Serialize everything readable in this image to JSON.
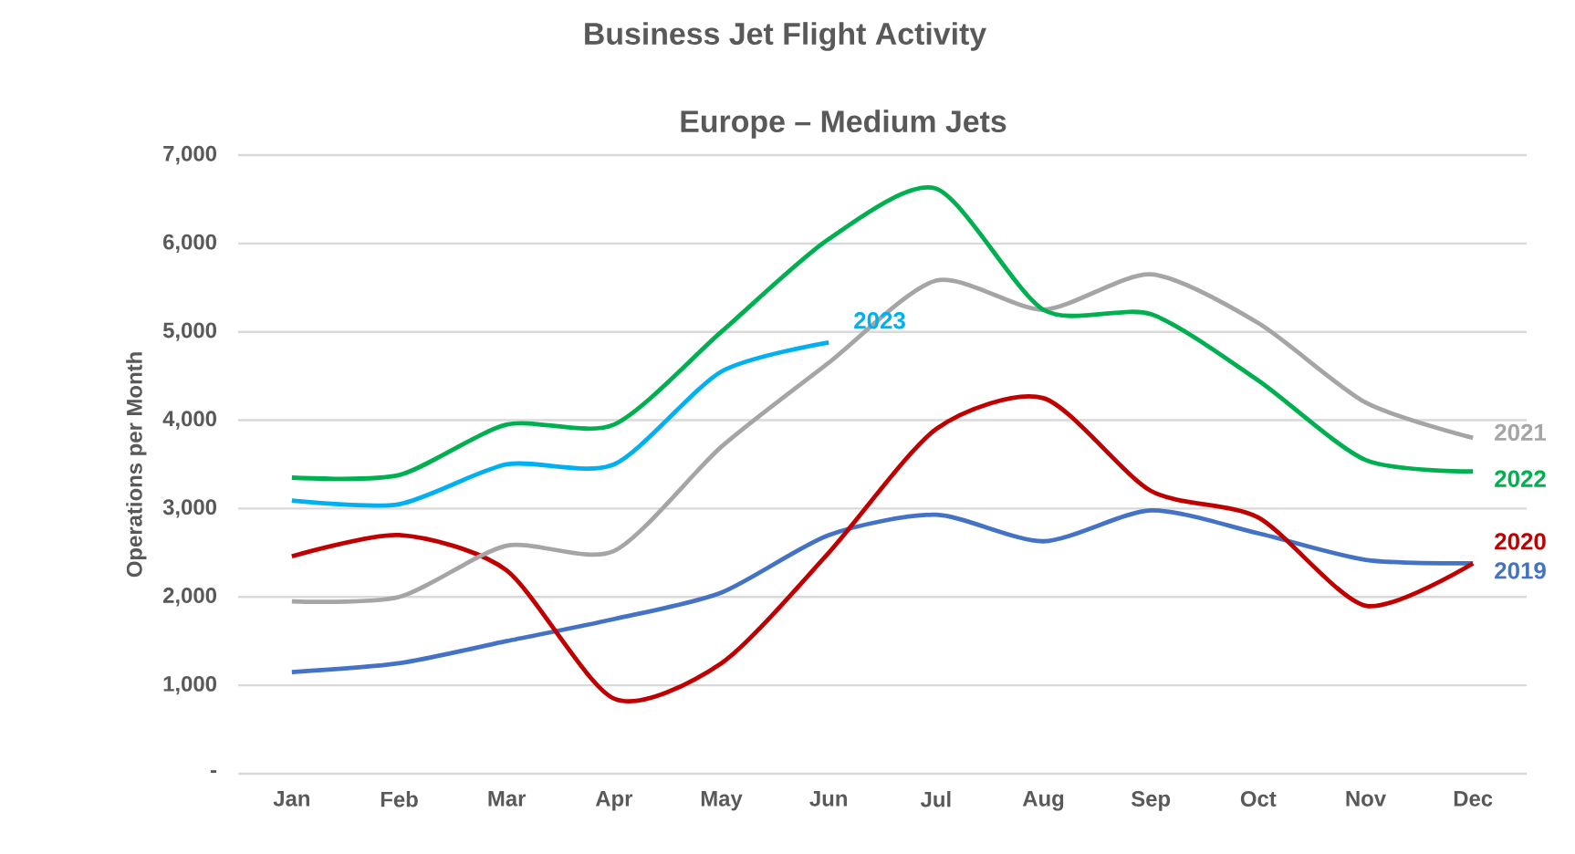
{
  "chart_data": {
    "type": "line",
    "title": "Business Jet Flight Activity",
    "subtitle": "Europe – Medium Jets",
    "ylabel": "Operations per Month",
    "categories": [
      "Jan",
      "Feb",
      "Mar",
      "Apr",
      "May",
      "Jun",
      "Jul",
      "Aug",
      "Sep",
      "Oct",
      "Nov",
      "Dec"
    ],
    "series": [
      {
        "name": "2019",
        "color": "#4472c4",
        "values": [
          1150,
          1250,
          1500,
          1750,
          2050,
          2700,
          2930,
          2630,
          2980,
          2720,
          2420,
          2380
        ]
      },
      {
        "name": "2020",
        "color": "#c00000",
        "values": [
          2460,
          2700,
          2300,
          850,
          1250,
          2500,
          3900,
          4250,
          3200,
          2900,
          1900,
          2380
        ]
      },
      {
        "name": "2021",
        "color": "#a5a5a5",
        "values": [
          1950,
          2000,
          2580,
          2520,
          3700,
          4650,
          5580,
          5250,
          5650,
          5100,
          4200,
          3800
        ]
      },
      {
        "name": "2022",
        "color": "#00b050",
        "values": [
          3350,
          3380,
          3950,
          3950,
          5000,
          6050,
          6620,
          5250,
          5200,
          4450,
          3550,
          3420
        ]
      },
      {
        "name": "2023",
        "color": "#00b0f0",
        "values": [
          3090,
          3050,
          3500,
          3500,
          4550,
          4880,
          null,
          null,
          null,
          null,
          null,
          null
        ]
      }
    ],
    "ylim": [
      0,
      7000
    ],
    "yticks": [
      {
        "value": 0,
        "label": "-"
      },
      {
        "value": 1000,
        "label": "1,000"
      },
      {
        "value": 2000,
        "label": "2,000"
      },
      {
        "value": 3000,
        "label": "3,000"
      },
      {
        "value": 4000,
        "label": "4,000"
      },
      {
        "value": 5000,
        "label": "5,000"
      },
      {
        "value": 6000,
        "label": "6,000"
      },
      {
        "value": 7000,
        "label": "7,000"
      }
    ],
    "grid": "y",
    "marker": "none",
    "line_style": "solid"
  }
}
